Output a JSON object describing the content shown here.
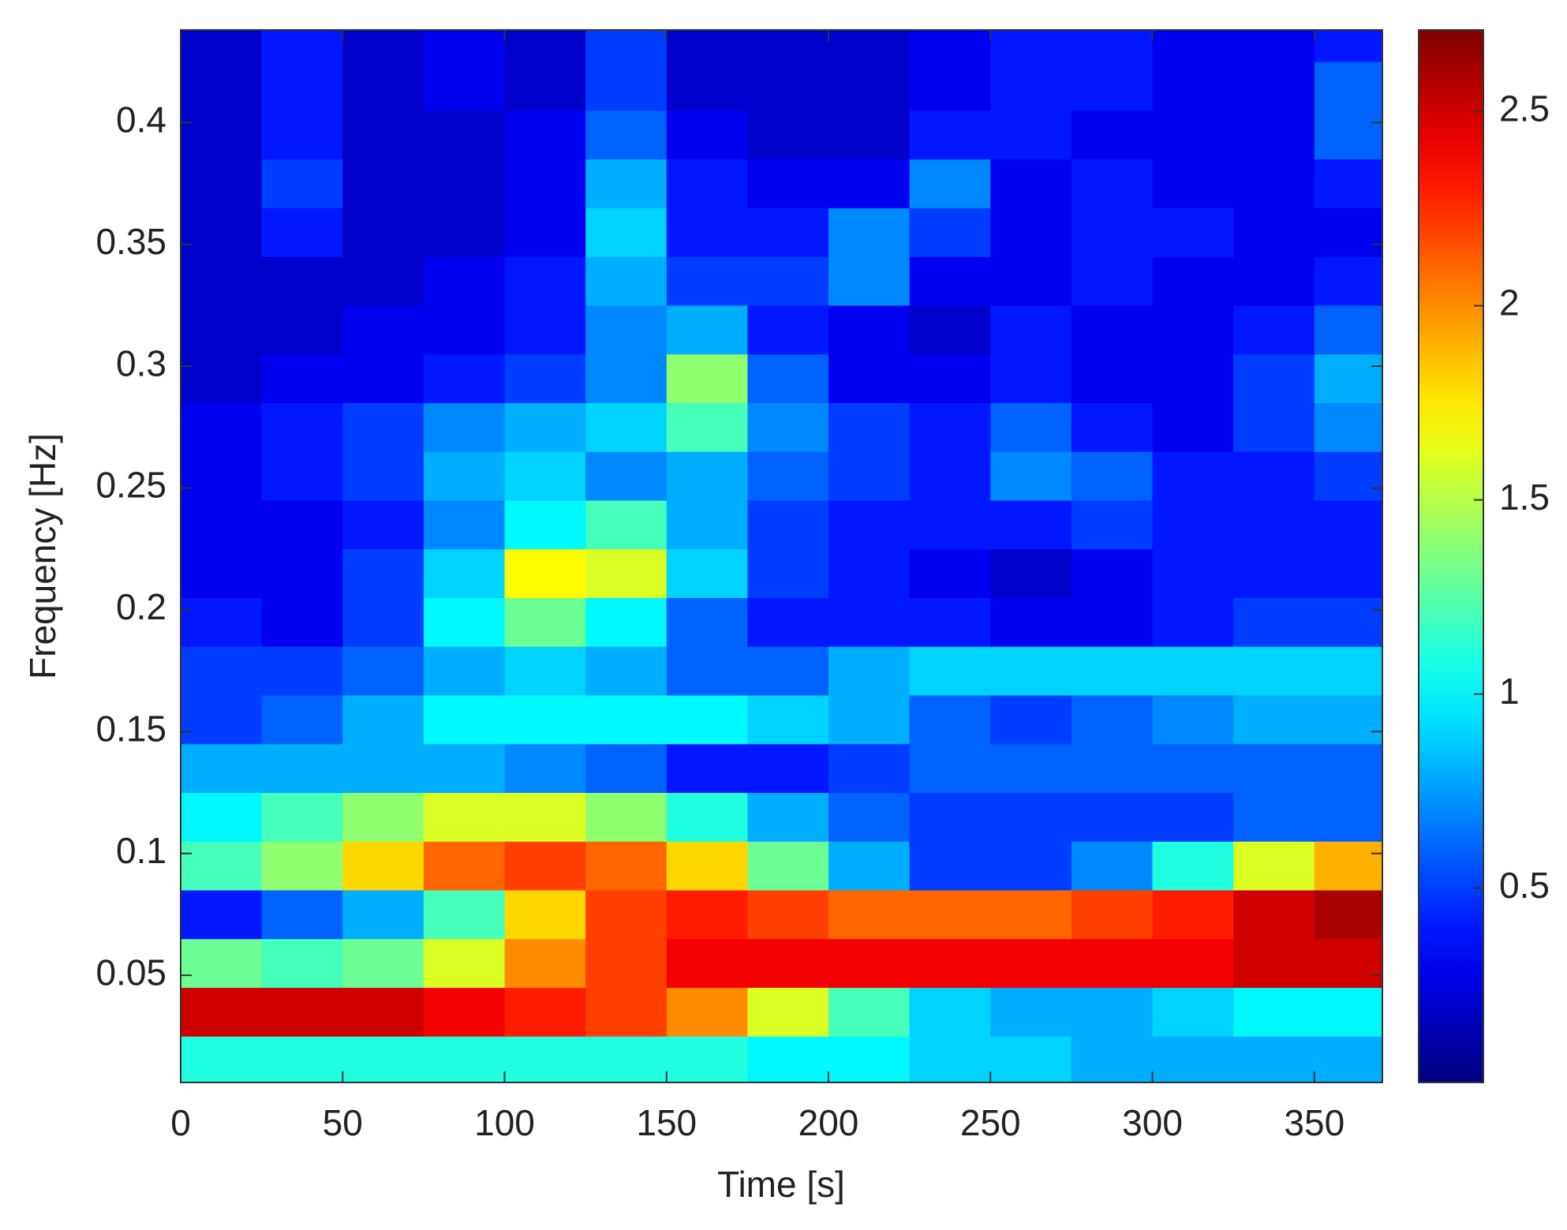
{
  "chart_data": {
    "type": "heatmap",
    "xlabel": "Time [s]",
    "ylabel": "Frequency [Hz]",
    "x": [
      12.5,
      37.5,
      62.5,
      87.5,
      112.5,
      137.5,
      162.5,
      187.5,
      212.5,
      237.5,
      262.5,
      287.5,
      312.5,
      337.5,
      362.5
    ],
    "y": [
      0.015,
      0.035,
      0.055,
      0.075,
      0.095,
      0.115,
      0.135,
      0.155,
      0.175,
      0.195,
      0.215,
      0.235,
      0.255,
      0.275,
      0.295,
      0.315,
      0.335,
      0.355,
      0.375,
      0.395,
      0.415,
      0.435
    ],
    "values": [
      [
        1.1,
        1.1,
        1.1,
        1.1,
        1.1,
        1.1,
        1.1,
        1.0,
        1.0,
        0.9,
        0.9,
        0.8,
        0.8,
        0.8,
        0.8
      ],
      [
        2.5,
        2.5,
        2.5,
        2.4,
        2.3,
        2.2,
        2.0,
        1.6,
        1.2,
        0.9,
        0.8,
        0.8,
        0.9,
        1.0,
        1.0
      ],
      [
        1.3,
        1.2,
        1.3,
        1.6,
        2.0,
        2.2,
        2.4,
        2.4,
        2.4,
        2.4,
        2.4,
        2.4,
        2.4,
        2.5,
        2.5
      ],
      [
        0.4,
        0.6,
        0.8,
        1.2,
        1.8,
        2.2,
        2.3,
        2.2,
        2.1,
        2.1,
        2.1,
        2.2,
        2.3,
        2.5,
        2.6
      ],
      [
        1.2,
        1.4,
        1.8,
        2.1,
        2.2,
        2.1,
        1.8,
        1.3,
        0.8,
        0.5,
        0.5,
        0.7,
        1.1,
        1.6,
        1.9
      ],
      [
        1.0,
        1.2,
        1.4,
        1.6,
        1.6,
        1.4,
        1.1,
        0.8,
        0.6,
        0.5,
        0.5,
        0.5,
        0.5,
        0.6,
        0.6
      ],
      [
        0.8,
        0.8,
        0.8,
        0.8,
        0.7,
        0.6,
        0.4,
        0.4,
        0.5,
        0.6,
        0.6,
        0.6,
        0.6,
        0.6,
        0.6
      ],
      [
        0.5,
        0.6,
        0.8,
        1.0,
        1.0,
        1.0,
        1.0,
        0.9,
        0.8,
        0.6,
        0.5,
        0.6,
        0.7,
        0.8,
        0.8
      ],
      [
        0.5,
        0.5,
        0.6,
        0.8,
        0.9,
        0.8,
        0.6,
        0.6,
        0.8,
        0.9,
        0.9,
        0.9,
        0.9,
        0.9,
        0.9
      ],
      [
        0.4,
        0.3,
        0.5,
        1.0,
        1.3,
        1.0,
        0.6,
        0.4,
        0.4,
        0.4,
        0.3,
        0.3,
        0.4,
        0.5,
        0.5
      ],
      [
        0.3,
        0.3,
        0.5,
        0.9,
        1.7,
        1.6,
        0.9,
        0.5,
        0.4,
        0.3,
        0.2,
        0.3,
        0.4,
        0.4,
        0.4
      ],
      [
        0.3,
        0.3,
        0.4,
        0.7,
        1.0,
        1.2,
        0.8,
        0.5,
        0.4,
        0.4,
        0.4,
        0.5,
        0.4,
        0.4,
        0.4
      ],
      [
        0.3,
        0.4,
        0.5,
        0.8,
        0.9,
        0.7,
        0.8,
        0.6,
        0.5,
        0.4,
        0.7,
        0.6,
        0.4,
        0.4,
        0.5
      ],
      [
        0.3,
        0.4,
        0.5,
        0.7,
        0.8,
        0.9,
        1.2,
        0.7,
        0.5,
        0.4,
        0.6,
        0.4,
        0.3,
        0.5,
        0.7
      ],
      [
        0.2,
        0.3,
        0.3,
        0.4,
        0.5,
        0.7,
        1.4,
        0.6,
        0.3,
        0.3,
        0.4,
        0.3,
        0.3,
        0.5,
        0.8
      ],
      [
        0.2,
        0.2,
        0.3,
        0.3,
        0.4,
        0.7,
        0.8,
        0.4,
        0.3,
        0.2,
        0.4,
        0.3,
        0.3,
        0.4,
        0.6
      ],
      [
        0.2,
        0.2,
        0.2,
        0.3,
        0.4,
        0.8,
        0.5,
        0.5,
        0.7,
        0.3,
        0.3,
        0.4,
        0.3,
        0.3,
        0.4
      ],
      [
        0.2,
        0.4,
        0.2,
        0.2,
        0.3,
        0.9,
        0.4,
        0.4,
        0.7,
        0.5,
        0.3,
        0.4,
        0.4,
        0.3,
        0.3
      ],
      [
        0.2,
        0.5,
        0.2,
        0.2,
        0.3,
        0.8,
        0.4,
        0.3,
        0.3,
        0.7,
        0.3,
        0.4,
        0.3,
        0.3,
        0.4
      ],
      [
        0.2,
        0.4,
        0.2,
        0.2,
        0.3,
        0.6,
        0.3,
        0.2,
        0.2,
        0.4,
        0.4,
        0.3,
        0.3,
        0.3,
        0.6
      ],
      [
        0.2,
        0.4,
        0.2,
        0.3,
        0.2,
        0.5,
        0.2,
        0.2,
        0.2,
        0.3,
        0.4,
        0.4,
        0.3,
        0.3,
        0.6
      ],
      [
        0.2,
        0.4,
        0.2,
        0.3,
        0.2,
        0.5,
        0.2,
        0.2,
        0.2,
        0.3,
        0.4,
        0.4,
        0.3,
        0.3,
        0.4
      ]
    ],
    "colormap": "jet",
    "xlim": [
      0,
      371
    ],
    "ylim": [
      0.006,
      0.438
    ],
    "xticks": [
      0,
      50,
      100,
      150,
      200,
      250,
      300,
      350
    ],
    "yticks": [
      0.05,
      0.1,
      0.15,
      0.2,
      0.25,
      0.3,
      0.35,
      0.4
    ],
    "clim": [
      0,
      2.71
    ],
    "cticks": [
      0.5,
      1,
      1.5,
      2,
      2.5
    ]
  }
}
